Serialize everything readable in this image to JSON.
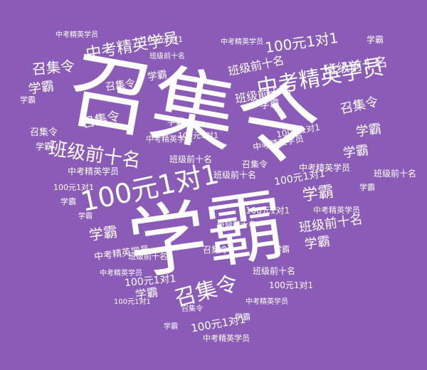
{
  "colors": {
    "background": "#8a5cb8",
    "heart": "#8a5cb8",
    "text": "#ffffff"
  },
  "words": {
    "w0": "召集令",
    "w1": "学霸",
    "w2": "中考精英学员",
    "w3": "班级前十名",
    "w4": "100元1对1"
  }
}
